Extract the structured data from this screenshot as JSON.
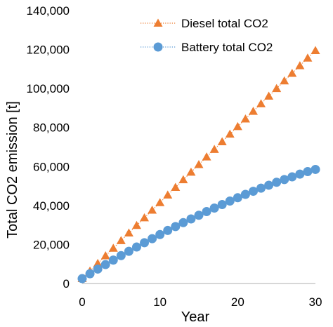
{
  "chart_data": {
    "type": "line",
    "title": "",
    "xlabel": "Year",
    "ylabel": "Total CO2 emission [t]",
    "xlim": [
      0,
      30
    ],
    "ylim": [
      0,
      140000
    ],
    "x_ticks": [
      0,
      10,
      20,
      30
    ],
    "y_ticks": [
      0,
      20000,
      40000,
      60000,
      80000,
      100000,
      120000,
      140000
    ],
    "y_tick_labels": [
      "0",
      "20,000",
      "40,000",
      "60,000",
      "80,000",
      "100,000",
      "120,000",
      "140,000"
    ],
    "grid": false,
    "legend_position": "top-right",
    "x": [
      0,
      1,
      2,
      3,
      4,
      5,
      6,
      7,
      8,
      9,
      10,
      11,
      12,
      13,
      14,
      15,
      16,
      17,
      18,
      19,
      20,
      21,
      22,
      23,
      24,
      25,
      26,
      27,
      28,
      29,
      30
    ],
    "series": [
      {
        "name": "Diesel total CO2",
        "color": "#ED7D31",
        "marker": "triangle",
        "line_style": "dotted",
        "values": [
          2500,
          6400,
          10300,
          14200,
          18100,
          22000,
          25900,
          29800,
          33700,
          37600,
          41500,
          45400,
          49300,
          53200,
          57100,
          61000,
          64900,
          68800,
          72700,
          76600,
          80500,
          84400,
          88300,
          92200,
          96100,
          100000,
          103900,
          107800,
          111700,
          115600,
          119500
        ]
      },
      {
        "name": "Battery total CO2",
        "color": "#5B9BD5",
        "marker": "circle",
        "line_style": "dotted",
        "values": [
          2500,
          5000,
          7400,
          9700,
          12000,
          14300,
          16500,
          18700,
          20900,
          23000,
          25100,
          27200,
          29200,
          31200,
          33100,
          35000,
          36900,
          38700,
          40500,
          42300,
          44000,
          45700,
          47300,
          48900,
          50400,
          51900,
          53300,
          54700,
          56100,
          57400,
          58500
        ]
      }
    ]
  }
}
